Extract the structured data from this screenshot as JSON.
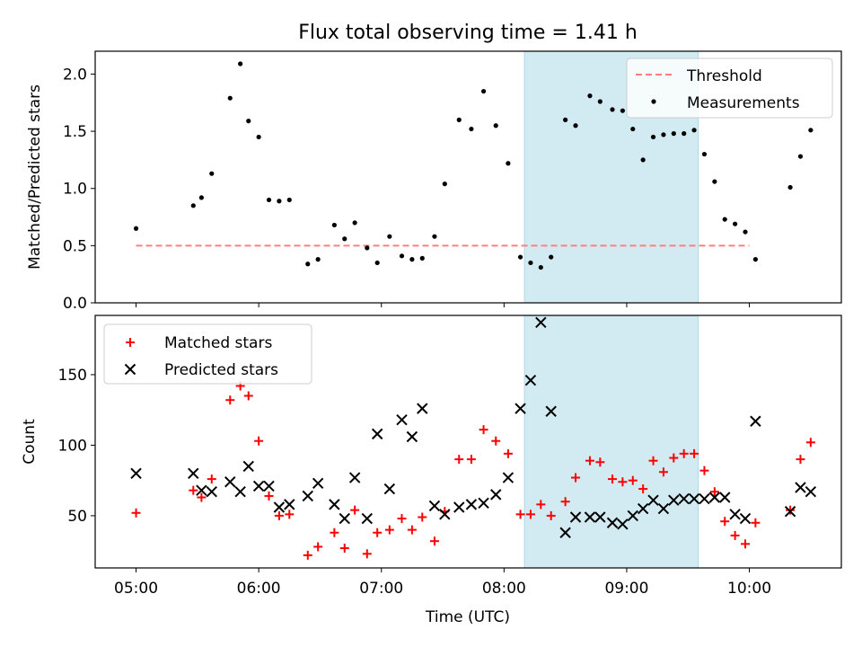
{
  "chart_data": {
    "title": "Flux total observing time = 1.41 h",
    "xlabel": "Time (UTC)",
    "x_ticks": [
      "05:00",
      "06:00",
      "07:00",
      "08:00",
      "09:00",
      "10:00"
    ],
    "shaded_span": {
      "start": "08:10",
      "end": "09:35",
      "color": "#add8e6"
    },
    "panels": [
      {
        "type": "scatter",
        "ylabel": "Matched/Predicted stars",
        "ylim": [
          0,
          2.2
        ],
        "y_ticks": [
          "0.0",
          "0.5",
          "1.0",
          "1.5",
          "2.0"
        ],
        "legend": {
          "placement": "top-right",
          "entries": [
            "Threshold",
            "Measurements"
          ]
        },
        "threshold": {
          "name": "Threshold",
          "value": 0.5,
          "x_range": [
            "05:00",
            "10:00"
          ],
          "color": "#ff7f7f"
        },
        "series": [
          {
            "name": "Measurements",
            "color": "#000000",
            "points": [
              [
                "05:00",
                0.65
              ],
              [
                "05:28",
                0.85
              ],
              [
                "05:32",
                0.92
              ],
              [
                "05:37",
                1.13
              ],
              [
                "05:46",
                1.79
              ],
              [
                "05:51",
                2.09
              ],
              [
                "05:55",
                1.59
              ],
              [
                "06:00",
                1.45
              ],
              [
                "06:05",
                0.9
              ],
              [
                "06:10",
                0.89
              ],
              [
                "06:15",
                0.9
              ],
              [
                "06:24",
                0.34
              ],
              [
                "06:29",
                0.38
              ],
              [
                "06:37",
                0.68
              ],
              [
                "06:42",
                0.56
              ],
              [
                "06:47",
                0.7
              ],
              [
                "06:53",
                0.48
              ],
              [
                "06:58",
                0.35
              ],
              [
                "07:04",
                0.58
              ],
              [
                "07:10",
                0.41
              ],
              [
                "07:15",
                0.38
              ],
              [
                "07:20",
                0.39
              ],
              [
                "07:26",
                0.58
              ],
              [
                "07:31",
                1.04
              ],
              [
                "07:38",
                1.6
              ],
              [
                "07:44",
                1.52
              ],
              [
                "07:50",
                1.85
              ],
              [
                "07:56",
                1.55
              ],
              [
                "08:02",
                1.22
              ],
              [
                "08:08",
                0.4
              ],
              [
                "08:13",
                0.35
              ],
              [
                "08:18",
                0.31
              ],
              [
                "08:23",
                0.4
              ],
              [
                "08:30",
                1.6
              ],
              [
                "08:35",
                1.55
              ],
              [
                "08:42",
                1.81
              ],
              [
                "08:47",
                1.76
              ],
              [
                "08:53",
                1.69
              ],
              [
                "08:58",
                1.68
              ],
              [
                "09:03",
                1.52
              ],
              [
                "09:08",
                1.25
              ],
              [
                "09:13",
                1.45
              ],
              [
                "09:18",
                1.47
              ],
              [
                "09:23",
                1.48
              ],
              [
                "09:28",
                1.48
              ],
              [
                "09:33",
                1.51
              ],
              [
                "09:38",
                1.3
              ],
              [
                "09:43",
                1.06
              ],
              [
                "09:48",
                0.73
              ],
              [
                "09:53",
                0.69
              ],
              [
                "09:58",
                0.62
              ],
              [
                "10:03",
                0.38
              ],
              [
                "10:20",
                1.01
              ],
              [
                "10:25",
                1.28
              ],
              [
                "10:30",
                1.51
              ]
            ]
          }
        ]
      },
      {
        "type": "scatter",
        "ylabel": "Count",
        "ylim": [
          13,
          192
        ],
        "y_ticks": [
          "50",
          "100",
          "150"
        ],
        "legend": {
          "placement": "top-left",
          "entries": [
            "Matched stars",
            "Predicted stars"
          ]
        },
        "series": [
          {
            "name": "Matched stars",
            "marker": "+",
            "color": "#ff0000",
            "points": [
              [
                "05:00",
                52
              ],
              [
                "05:28",
                68
              ],
              [
                "05:32",
                63
              ],
              [
                "05:37",
                76
              ],
              [
                "05:46",
                132
              ],
              [
                "05:51",
                142
              ],
              [
                "05:55",
                135
              ],
              [
                "06:00",
                103
              ],
              [
                "06:05",
                64
              ],
              [
                "06:10",
                50
              ],
              [
                "06:15",
                51
              ],
              [
                "06:24",
                22
              ],
              [
                "06:29",
                28
              ],
              [
                "06:37",
                38
              ],
              [
                "06:42",
                27
              ],
              [
                "06:47",
                54
              ],
              [
                "06:53",
                23
              ],
              [
                "06:58",
                38
              ],
              [
                "07:04",
                40
              ],
              [
                "07:10",
                48
              ],
              [
                "07:15",
                40
              ],
              [
                "07:20",
                49
              ],
              [
                "07:26",
                32
              ],
              [
                "07:31",
                53
              ],
              [
                "07:38",
                90
              ],
              [
                "07:44",
                90
              ],
              [
                "07:50",
                111
              ],
              [
                "07:56",
                103
              ],
              [
                "08:02",
                94
              ],
              [
                "08:08",
                51
              ],
              [
                "08:13",
                51
              ],
              [
                "08:18",
                58
              ],
              [
                "08:23",
                50
              ],
              [
                "08:30",
                60
              ],
              [
                "08:35",
                77
              ],
              [
                "08:42",
                89
              ],
              [
                "08:47",
                88
              ],
              [
                "08:53",
                76
              ],
              [
                "08:58",
                74
              ],
              [
                "09:03",
                75
              ],
              [
                "09:08",
                69
              ],
              [
                "09:13",
                89
              ],
              [
                "09:18",
                81
              ],
              [
                "09:23",
                91
              ],
              [
                "09:28",
                94
              ],
              [
                "09:33",
                94
              ],
              [
                "09:38",
                82
              ],
              [
                "09:43",
                67
              ],
              [
                "09:48",
                46
              ],
              [
                "09:53",
                36
              ],
              [
                "09:58",
                30
              ],
              [
                "10:03",
                45
              ],
              [
                "10:20",
                54
              ],
              [
                "10:25",
                90
              ],
              [
                "10:30",
                102
              ]
            ]
          },
          {
            "name": "Predicted stars",
            "marker": "x",
            "color": "#000000",
            "points": [
              [
                "05:00",
                80
              ],
              [
                "05:28",
                80
              ],
              [
                "05:32",
                68
              ],
              [
                "05:37",
                67
              ],
              [
                "05:46",
                74
              ],
              [
                "05:51",
                67
              ],
              [
                "05:55",
                85
              ],
              [
                "06:00",
                71
              ],
              [
                "06:05",
                71
              ],
              [
                "06:10",
                56
              ],
              [
                "06:15",
                58
              ],
              [
                "06:24",
                64
              ],
              [
                "06:29",
                73
              ],
              [
                "06:37",
                58
              ],
              [
                "06:42",
                48
              ],
              [
                "06:47",
                77
              ],
              [
                "06:53",
                48
              ],
              [
                "06:58",
                108
              ],
              [
                "07:04",
                69
              ],
              [
                "07:10",
                118
              ],
              [
                "07:15",
                106
              ],
              [
                "07:20",
                126
              ],
              [
                "07:26",
                57
              ],
              [
                "07:31",
                51
              ],
              [
                "07:38",
                56
              ],
              [
                "07:44",
                58
              ],
              [
                "07:50",
                59
              ],
              [
                "07:56",
                65
              ],
              [
                "08:02",
                77
              ],
              [
                "08:08",
                126
              ],
              [
                "08:13",
                146
              ],
              [
                "08:18",
                187
              ],
              [
                "08:23",
                124
              ],
              [
                "08:30",
                38
              ],
              [
                "08:35",
                49
              ],
              [
                "08:42",
                49
              ],
              [
                "08:47",
                49
              ],
              [
                "08:53",
                45
              ],
              [
                "08:58",
                44
              ],
              [
                "09:03",
                50
              ],
              [
                "09:08",
                55
              ],
              [
                "09:13",
                61
              ],
              [
                "09:18",
                55
              ],
              [
                "09:23",
                61
              ],
              [
                "09:28",
                62
              ],
              [
                "09:33",
                62
              ],
              [
                "09:38",
                62
              ],
              [
                "09:43",
                63
              ],
              [
                "09:48",
                63
              ],
              [
                "09:53",
                51
              ],
              [
                "09:58",
                48
              ],
              [
                "10:03",
                117
              ],
              [
                "10:20",
                53
              ],
              [
                "10:25",
                70
              ],
              [
                "10:30",
                67
              ]
            ]
          }
        ]
      }
    ]
  }
}
